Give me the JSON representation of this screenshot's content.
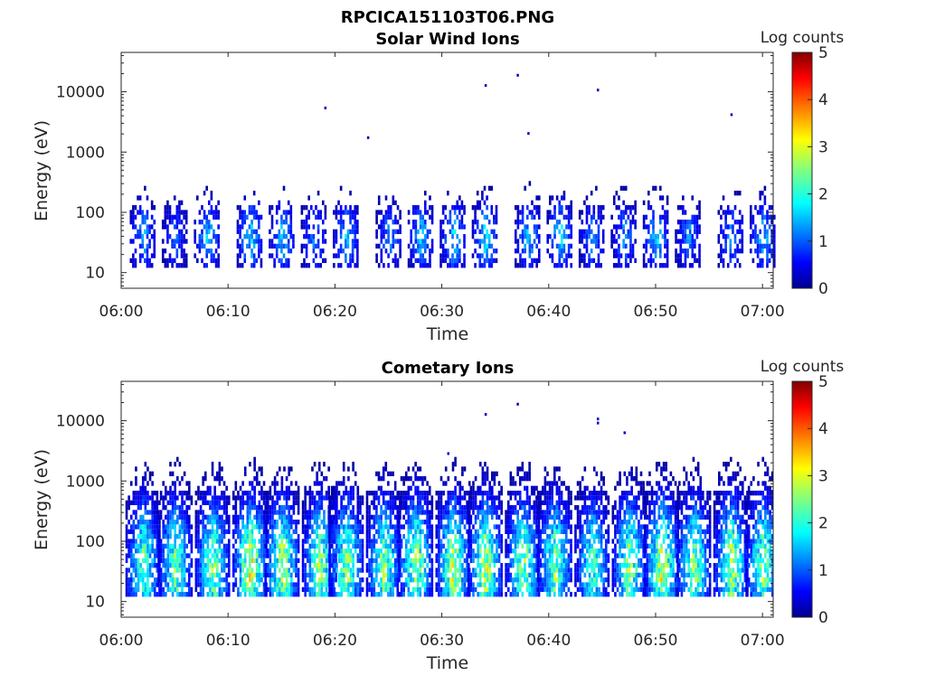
{
  "figure_title": "RPCICA151103T06.PNG",
  "chart_data": [
    {
      "type": "heatmap",
      "title": "Solar Wind Ions",
      "xlabel": "Time",
      "ylabel": "Energy (eV)",
      "x_axis": {
        "type": "time",
        "range": [
          "06:00",
          "07:01"
        ],
        "ticks": [
          "06:00",
          "06:10",
          "06:20",
          "06:30",
          "06:40",
          "06:50",
          "07:00"
        ]
      },
      "y_axis": {
        "scale": "log",
        "range": [
          5.5,
          45000
        ],
        "ticks": [
          10,
          100,
          1000,
          10000
        ],
        "tick_labels": [
          "10",
          "100",
          "1000",
          "10000"
        ]
      },
      "colorbar": {
        "label": "Log counts",
        "range": [
          0,
          5
        ],
        "ticks": [
          "0",
          "1",
          "2",
          "3",
          "4",
          "5"
        ],
        "colormap": "jet"
      },
      "bursts": [
        {
          "t": "06:02",
          "max_log": 1.7
        },
        {
          "t": "06:05",
          "max_log": 1.2
        },
        {
          "t": "06:08",
          "max_log": 1.8
        },
        {
          "t": "06:12",
          "max_log": 2.0
        },
        {
          "t": "06:15",
          "max_log": 1.8
        },
        {
          "t": "06:18",
          "max_log": 1.4
        },
        {
          "t": "06:21",
          "max_log": 1.8
        },
        {
          "t": "06:25",
          "max_log": 1.5
        },
        {
          "t": "06:28",
          "max_log": 1.8
        },
        {
          "t": "06:31",
          "max_log": 2.0
        },
        {
          "t": "06:34",
          "max_log": 2.0
        },
        {
          "t": "06:38",
          "max_log": 1.8
        },
        {
          "t": "06:41",
          "max_log": 2.0
        },
        {
          "t": "06:44",
          "max_log": 1.5
        },
        {
          "t": "06:47",
          "max_log": 1.5
        },
        {
          "t": "06:50",
          "max_log": 2.0
        },
        {
          "t": "06:53",
          "max_log": 1.5
        },
        {
          "t": "06:57",
          "max_log": 1.5
        },
        {
          "t": "07:00",
          "max_log": 1.8
        }
      ],
      "isolated_points": [
        {
          "t": "06:19",
          "e": 5300
        },
        {
          "t": "06:23",
          "e": 1700
        },
        {
          "t": "06:34",
          "e": 12500
        },
        {
          "t": "06:37",
          "e": 18500
        },
        {
          "t": "06:38",
          "e": 2000
        },
        {
          "t": "06:44.5",
          "e": 10500
        },
        {
          "t": "06:57",
          "e": 4100
        }
      ]
    },
    {
      "type": "heatmap",
      "title": "Cometary Ions",
      "xlabel": "Time",
      "ylabel": "Energy (eV)",
      "x_axis": {
        "type": "time",
        "range": [
          "06:00",
          "07:01"
        ],
        "ticks": [
          "06:00",
          "06:10",
          "06:20",
          "06:30",
          "06:40",
          "06:50",
          "07:00"
        ]
      },
      "y_axis": {
        "scale": "log",
        "range": [
          5.5,
          45000
        ],
        "ticks": [
          10,
          100,
          1000,
          10000
        ],
        "tick_labels": [
          "10",
          "100",
          "1000",
          "10000"
        ]
      },
      "colorbar": {
        "label": "Log counts",
        "range": [
          0,
          5
        ],
        "ticks": [
          "0",
          "1",
          "2",
          "3",
          "4",
          "5"
        ],
        "colormap": "jet"
      },
      "bursts": [
        {
          "t": "06:02",
          "max_log": 2.8
        },
        {
          "t": "06:05",
          "max_log": 2.8
        },
        {
          "t": "06:08.5",
          "max_log": 3.0
        },
        {
          "t": "06:12",
          "max_log": 3.5
        },
        {
          "t": "06:15",
          "max_log": 3.2
        },
        {
          "t": "06:18.5",
          "max_log": 3.0
        },
        {
          "t": "06:21",
          "max_log": 3.0
        },
        {
          "t": "06:24.5",
          "max_log": 3.0
        },
        {
          "t": "06:27.5",
          "max_log": 3.2
        },
        {
          "t": "06:31",
          "max_log": 3.3
        },
        {
          "t": "06:34",
          "max_log": 3.3
        },
        {
          "t": "06:37.5",
          "max_log": 3.0
        },
        {
          "t": "06:40.5",
          "max_log": 3.0
        },
        {
          "t": "06:44",
          "max_log": 2.6
        },
        {
          "t": "06:47.5",
          "max_log": 3.0
        },
        {
          "t": "06:50.5",
          "max_log": 3.4
        },
        {
          "t": "06:53.5",
          "max_log": 3.0
        },
        {
          "t": "06:57",
          "max_log": 3.2
        },
        {
          "t": "07:00",
          "max_log": 3.0
        }
      ],
      "isolated_points": [
        {
          "t": "06:34",
          "e": 12500
        },
        {
          "t": "06:37",
          "e": 18500
        },
        {
          "t": "06:44.5",
          "e": 10500
        },
        {
          "t": "06:44.5",
          "e": 9000
        },
        {
          "t": "06:47",
          "e": 6200
        },
        {
          "t": "06:30.5",
          "e": 2800
        }
      ]
    }
  ]
}
